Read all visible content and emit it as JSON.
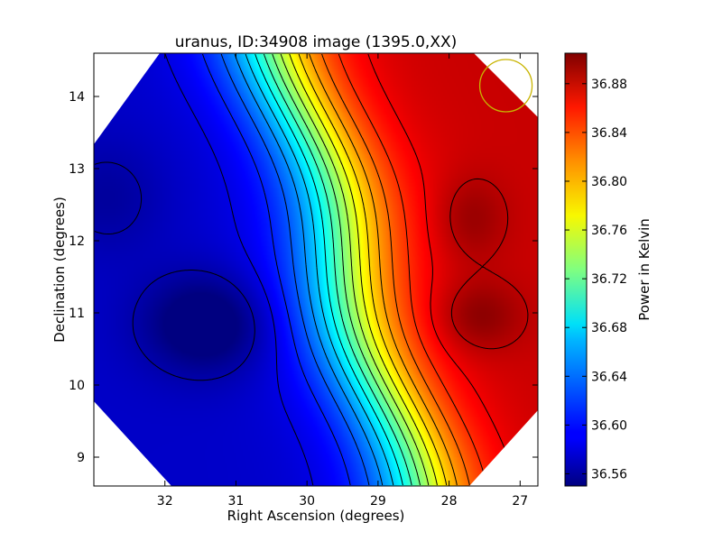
{
  "chart_data": {
    "type": "heatmap",
    "title": "uranus, ID:34908 image (1395.0,XX)",
    "xlabel": "Right Ascension (degrees)",
    "ylabel": "Declination (degrees)",
    "colorbar_label": "Power in Kelvin",
    "xlim": [
      33.0,
      26.75
    ],
    "ylim": [
      8.6,
      14.6
    ],
    "x_ticks": [
      32,
      31,
      30,
      29,
      28,
      27
    ],
    "y_ticks": [
      9,
      10,
      11,
      12,
      13,
      14
    ],
    "colorbar_range": [
      36.55,
      36.905
    ],
    "colorbar_ticks": [
      "36.56",
      "36.60",
      "36.64",
      "36.68",
      "36.72",
      "36.76",
      "36.80",
      "36.84",
      "36.88"
    ],
    "colormap": "jet",
    "contours": "on",
    "field_blobs": [
      {
        "ra": 31.4,
        "dec": 10.85,
        "value": 36.555
      },
      {
        "ra": 27.6,
        "dec": 10.95,
        "value": 36.895
      },
      {
        "ra": 27.7,
        "dec": 12.3,
        "value": 36.885
      }
    ],
    "beam_marker": {
      "ra": 27.2,
      "dec": 14.15,
      "color": "#c8b400"
    }
  }
}
